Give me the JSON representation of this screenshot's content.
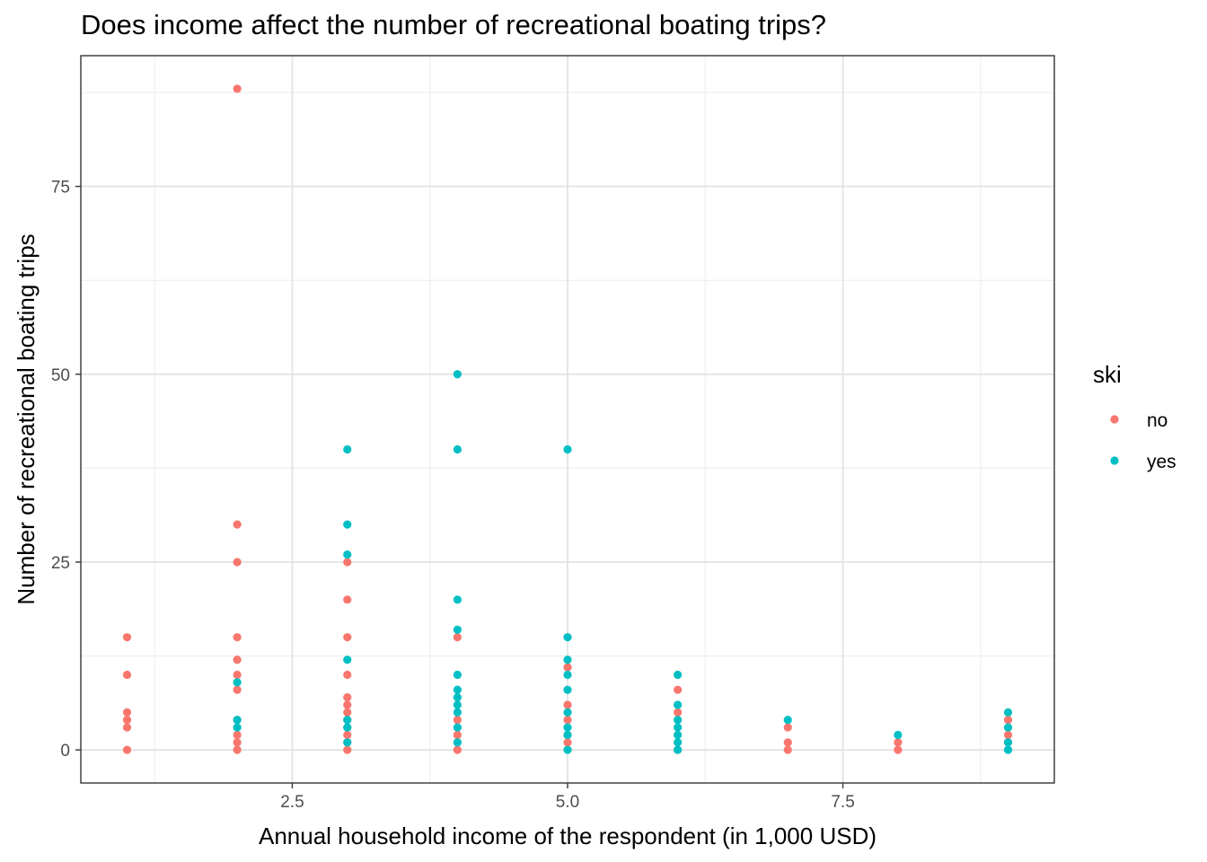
{
  "chart_data": {
    "type": "scatter",
    "title": "Does income affect the number of recreational boating trips?",
    "xlabel": "Annual household income of the respondent (in 1,000 USD)",
    "ylabel": "Number of recreational boating trips",
    "xlim": [
      0.58,
      9.42
    ],
    "ylim": [
      -4.4,
      92.4
    ],
    "x_ticks": [
      2.5,
      5.0,
      7.5
    ],
    "x_tick_labels": [
      "2.5",
      "5.0",
      "7.5"
    ],
    "x_minor_ticks": [
      1.25,
      3.75,
      6.25,
      8.75
    ],
    "y_ticks": [
      0,
      25,
      50,
      75
    ],
    "y_tick_labels": [
      "0",
      "25",
      "50",
      "75"
    ],
    "y_minor_ticks": [
      12.5,
      37.5,
      62.5,
      87.5
    ],
    "grid": true,
    "legend": {
      "title": "ski",
      "position": "right"
    },
    "series": [
      {
        "name": "no",
        "color": "#F8766D",
        "points": [
          [
            1,
            0
          ],
          [
            1,
            3
          ],
          [
            1,
            4
          ],
          [
            1,
            5
          ],
          [
            1,
            10
          ],
          [
            1,
            15
          ],
          [
            2,
            0
          ],
          [
            2,
            1
          ],
          [
            2,
            2
          ],
          [
            2,
            4
          ],
          [
            2,
            8
          ],
          [
            2,
            10
          ],
          [
            2,
            12
          ],
          [
            2,
            15
          ],
          [
            2,
            25
          ],
          [
            2,
            30
          ],
          [
            2,
            88
          ],
          [
            3,
            0
          ],
          [
            3,
            1
          ],
          [
            3,
            2
          ],
          [
            3,
            3
          ],
          [
            3,
            4
          ],
          [
            3,
            5
          ],
          [
            3,
            6
          ],
          [
            3,
            7
          ],
          [
            3,
            10
          ],
          [
            3,
            15
          ],
          [
            3,
            20
          ],
          [
            3,
            25
          ],
          [
            4,
            0
          ],
          [
            4,
            2
          ],
          [
            4,
            4
          ],
          [
            4,
            15
          ],
          [
            5,
            1
          ],
          [
            5,
            2
          ],
          [
            5,
            4
          ],
          [
            5,
            6
          ],
          [
            5,
            11
          ],
          [
            6,
            0
          ],
          [
            6,
            5
          ],
          [
            6,
            8
          ],
          [
            7,
            0
          ],
          [
            7,
            1
          ],
          [
            7,
            3
          ],
          [
            8,
            0
          ],
          [
            8,
            1
          ],
          [
            9,
            1
          ],
          [
            9,
            2
          ],
          [
            9,
            4
          ]
        ]
      },
      {
        "name": "yes",
        "color": "#00BFC4",
        "points": [
          [
            2,
            3
          ],
          [
            2,
            4
          ],
          [
            2,
            9
          ],
          [
            3,
            1
          ],
          [
            3,
            3
          ],
          [
            3,
            4
          ],
          [
            3,
            12
          ],
          [
            3,
            26
          ],
          [
            3,
            30
          ],
          [
            3,
            40
          ],
          [
            4,
            1
          ],
          [
            4,
            3
          ],
          [
            4,
            5
          ],
          [
            4,
            6
          ],
          [
            4,
            7
          ],
          [
            4,
            8
          ],
          [
            4,
            10
          ],
          [
            4,
            16
          ],
          [
            4,
            20
          ],
          [
            4,
            40
          ],
          [
            4,
            50
          ],
          [
            5,
            0
          ],
          [
            5,
            2
          ],
          [
            5,
            3
          ],
          [
            5,
            5
          ],
          [
            5,
            8
          ],
          [
            5,
            10
          ],
          [
            5,
            12
          ],
          [
            5,
            15
          ],
          [
            5,
            40
          ],
          [
            6,
            0
          ],
          [
            6,
            1
          ],
          [
            6,
            2
          ],
          [
            6,
            3
          ],
          [
            6,
            4
          ],
          [
            6,
            6
          ],
          [
            6,
            10
          ],
          [
            7,
            4
          ],
          [
            8,
            2
          ],
          [
            9,
            0
          ],
          [
            9,
            1
          ],
          [
            9,
            3
          ],
          [
            9,
            5
          ]
        ]
      }
    ]
  }
}
